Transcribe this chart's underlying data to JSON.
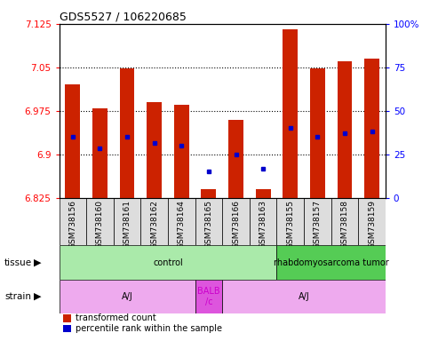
{
  "title": "GDS5527 / 106220685",
  "samples": [
    "GSM738156",
    "GSM738160",
    "GSM738161",
    "GSM738162",
    "GSM738164",
    "GSM738165",
    "GSM738166",
    "GSM738163",
    "GSM738155",
    "GSM738157",
    "GSM738158",
    "GSM738159"
  ],
  "red_values": [
    7.02,
    6.98,
    7.048,
    6.99,
    6.985,
    6.84,
    6.96,
    6.84,
    7.115,
    7.048,
    7.06,
    7.065
  ],
  "blue_values": [
    6.93,
    6.91,
    6.93,
    6.92,
    6.915,
    6.87,
    6.9,
    6.875,
    6.945,
    6.93,
    6.937,
    6.94
  ],
  "ymin": 6.825,
  "ymax": 7.125,
  "yticks": [
    6.825,
    6.9,
    6.975,
    7.05,
    7.125
  ],
  "right_yticks": [
    0,
    25,
    50,
    75,
    100
  ],
  "bar_color": "#cc2200",
  "dot_color": "#0000cc",
  "tissue_groups": [
    {
      "label": "control",
      "start": 0,
      "end": 8,
      "color": "#aaeaaa"
    },
    {
      "label": "rhabdomyosarcoma tumor",
      "start": 8,
      "end": 12,
      "color": "#55cc55"
    }
  ],
  "strain_groups": [
    {
      "label": "A/J",
      "start": 0,
      "end": 5,
      "color": "#eeaaee"
    },
    {
      "label": "BALB\n/c",
      "start": 5,
      "end": 6,
      "color": "#dd55dd"
    },
    {
      "label": "A/J",
      "start": 6,
      "end": 12,
      "color": "#eeaaee"
    }
  ],
  "legend_red": "transformed count",
  "legend_blue": "percentile rank within the sample",
  "tissue_label": "tissue",
  "strain_label": "strain",
  "bar_width": 0.55
}
